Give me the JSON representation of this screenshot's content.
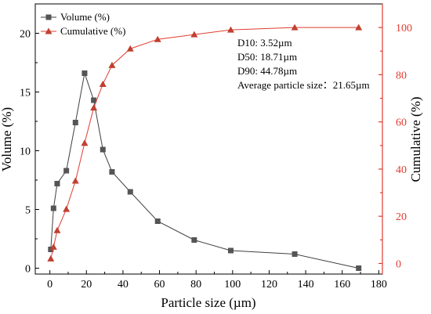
{
  "chart_data": {
    "type": "line",
    "xlabel": "Particle size (µm)",
    "ylabel_left": "Volume (%)",
    "ylabel_right": "Cumulative (%)",
    "xlim": [
      -8,
      182
    ],
    "ylim_left": [
      -0.5,
      22.5
    ],
    "ylim_right": [
      -4.5,
      110
    ],
    "x_ticks": [
      0,
      20,
      40,
      60,
      80,
      100,
      120,
      140,
      160,
      180
    ],
    "y_left_ticks": [
      0,
      5,
      10,
      15,
      20
    ],
    "y_right_ticks": [
      0,
      20,
      40,
      60,
      80,
      100
    ],
    "grid": false,
    "legend_position": "top-left",
    "colors": {
      "volume": "#404040",
      "cumulative": "#e03c31",
      "volume_marker": "#555555",
      "cumulative_marker": "#c04030"
    },
    "series": [
      {
        "name": "Volume (%)",
        "axis": "left",
        "marker": "square",
        "x": [
          0.5,
          2,
          4,
          9,
          14,
          19,
          24,
          29,
          34,
          44,
          59,
          79,
          99,
          134,
          169
        ],
        "y": [
          1.6,
          5.1,
          7.2,
          8.3,
          12.4,
          16.6,
          14.3,
          10.1,
          8.2,
          6.5,
          4.0,
          2.4,
          1.5,
          1.2,
          0.0
        ]
      },
      {
        "name": "Cumulative (%)",
        "axis": "right",
        "marker": "triangle",
        "x": [
          0.5,
          2,
          4,
          9,
          14,
          19,
          24,
          29,
          34,
          44,
          59,
          79,
          99,
          134,
          169
        ],
        "y": [
          2,
          7,
          14,
          23,
          35,
          51,
          66,
          76,
          84,
          91,
          95,
          97,
          99,
          100,
          100
        ]
      }
    ],
    "annotations": [
      "D10:  3.52µm",
      "D50:  18.71µm",
      "D90:  44.78µm",
      "Average particle size：21.65µm"
    ]
  }
}
